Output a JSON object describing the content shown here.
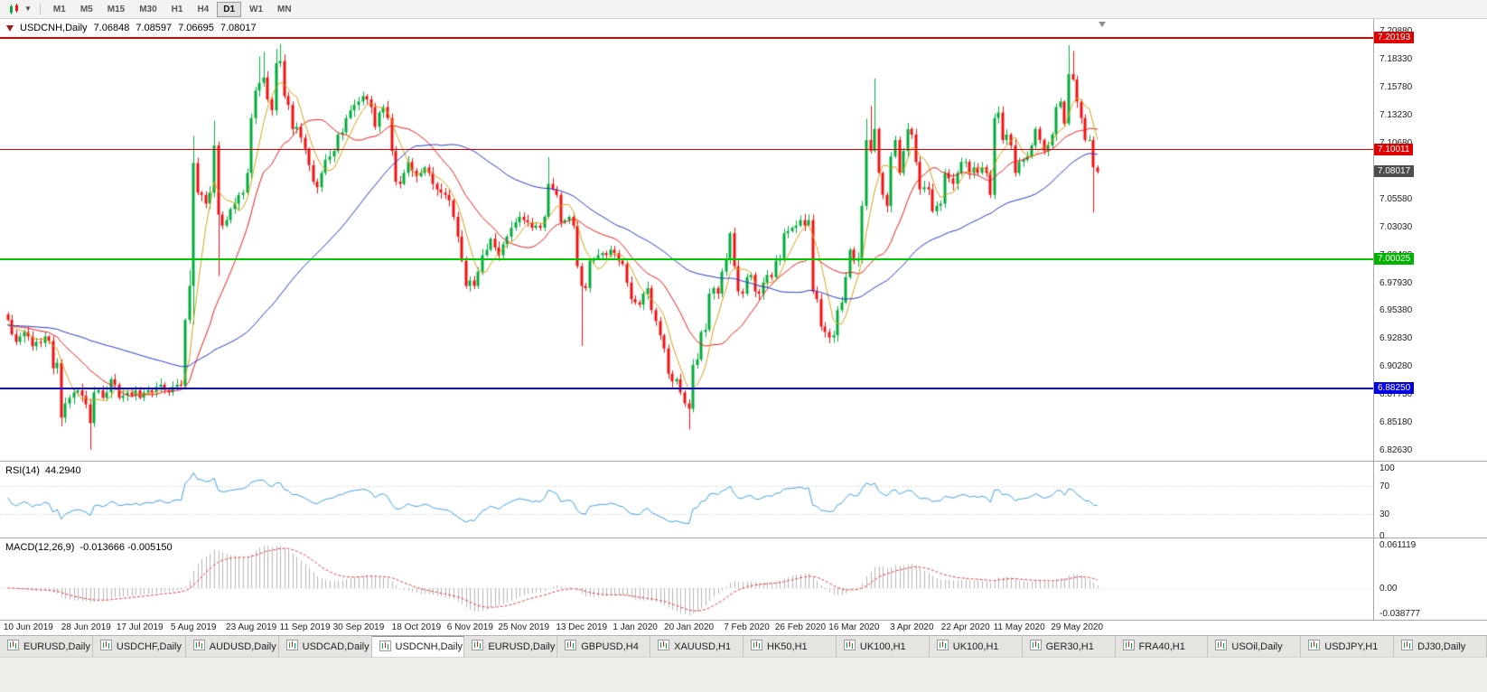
{
  "toolbar": {
    "timeframes": [
      "M1",
      "M5",
      "M15",
      "M30",
      "H1",
      "H4",
      "D1",
      "W1",
      "MN"
    ],
    "active_timeframe": "D1"
  },
  "chart": {
    "header": {
      "symbol": "USDCNH,Daily",
      "open": "7.06848",
      "high": "7.08597",
      "low": "7.06695",
      "close": "7.08017"
    },
    "rsi": {
      "name": "RSI(14)",
      "value": "44.2940"
    },
    "macd": {
      "name": "MACD(12,26,9)",
      "value": "-0.013666 -0.005150"
    },
    "price_axis": {
      "ticks": [
        "7.20880",
        "7.18330",
        "7.15780",
        "7.13230",
        "7.10680",
        "7.08130",
        "7.05580",
        "7.03030",
        "7.00480",
        "6.97930",
        "6.95380",
        "6.92830",
        "6.90280",
        "6.87730",
        "6.85180",
        "6.82630"
      ]
    },
    "rsi_axis": [
      "100",
      "70",
      "30",
      "0"
    ],
    "macd_axis": [
      "0.061119",
      "0.00",
      "-0.038777"
    ],
    "badges": [
      {
        "text": "7.20193",
        "price": 7.20193,
        "color": "#e00000"
      },
      {
        "text": "7.10011",
        "price": 7.10011,
        "color": "#e00000"
      },
      {
        "text": "7.08017",
        "price": 7.08017,
        "color": "#4d4d4d"
      },
      {
        "text": "7.00025",
        "price": 7.00025,
        "color": "#00b400"
      },
      {
        "text": "6.88250",
        "price": 6.8825,
        "color": "#0000e6"
      }
    ],
    "hlines": [
      {
        "price": 7.20193,
        "color": "#e00000",
        "width": 2
      },
      {
        "price": 7.10011,
        "color": "#e00000",
        "width": 1
      },
      {
        "price": 7.00025,
        "color": "#00c800",
        "width": 2
      },
      {
        "price": 6.8825,
        "color": "#0000e6",
        "width": 2
      }
    ],
    "x_labels": [
      {
        "text": "10 Jun 2019",
        "j": 5
      },
      {
        "text": "28 Jun 2019",
        "j": 19
      },
      {
        "text": "17 Jul 2019",
        "j": 32
      },
      {
        "text": "5 Aug 2019",
        "j": 45
      },
      {
        "text": "23 Aug 2019",
        "j": 59
      },
      {
        "text": "11 Sep 2019",
        "j": 72
      },
      {
        "text": "30 Sep 2019",
        "j": 85
      },
      {
        "text": "18 Oct 2019",
        "j": 99
      },
      {
        "text": "6 Nov 2019",
        "j": 112
      },
      {
        "text": "25 Nov 2019",
        "j": 125
      },
      {
        "text": "13 Dec 2019",
        "j": 139
      },
      {
        "text": "1 Jan 2020",
        "j": 152
      },
      {
        "text": "20 Jan 2020",
        "j": 165
      },
      {
        "text": "7 Feb 2020",
        "j": 179
      },
      {
        "text": "26 Feb 2020",
        "j": 192
      },
      {
        "text": "16 Mar 2020",
        "j": 205
      },
      {
        "text": "3 Apr 2020",
        "j": 219
      },
      {
        "text": "22 Apr 2020",
        "j": 232
      },
      {
        "text": "11 May 2020",
        "j": 245
      },
      {
        "text": "29 May 2020",
        "j": 259
      }
    ]
  },
  "chart_data": {
    "type": "candlestick",
    "symbol": "USDCNH",
    "timeframe": "Daily",
    "ohlc_display": {
      "open": "7.06848",
      "high": "7.08597",
      "low": "7.06695",
      "close": "7.08017"
    },
    "ylim": [
      6.82,
      7.216
    ],
    "closes": [
      6.945,
      6.932,
      6.925,
      6.93,
      6.934,
      6.93,
      6.921,
      6.925,
      6.924,
      6.93,
      6.926,
      6.901,
      6.906,
      6.856,
      6.869,
      6.874,
      6.879,
      6.881,
      6.876,
      6.868,
      6.851,
      6.879,
      6.881,
      6.874,
      6.879,
      6.891,
      6.886,
      6.874,
      6.876,
      6.879,
      6.876,
      6.881,
      6.874,
      6.879,
      6.881,
      6.879,
      6.884,
      6.886,
      6.881,
      6.879,
      6.884,
      6.886,
      6.885,
      6.945,
      6.976,
      7.088,
      7.061,
      7.059,
      7.051,
      7.061,
      7.104,
      7.041,
      7.031,
      7.036,
      7.046,
      7.051,
      7.059,
      7.061,
      7.079,
      7.129,
      7.154,
      7.161,
      7.166,
      7.146,
      7.136,
      7.179,
      7.181,
      7.149,
      7.141,
      7.119,
      7.121,
      7.111,
      7.101,
      7.086,
      7.071,
      7.066,
      7.079,
      7.091,
      7.094,
      7.099,
      7.114,
      7.116,
      7.129,
      7.136,
      7.141,
      7.144,
      7.149,
      7.146,
      7.139,
      7.121,
      7.134,
      7.139,
      7.129,
      7.099,
      7.071,
      7.069,
      7.079,
      7.089,
      7.081,
      7.076,
      7.079,
      7.084,
      7.079,
      7.069,
      7.064,
      7.061,
      7.059,
      7.054,
      7.039,
      7.021,
      6.999,
      6.976,
      6.981,
      6.976,
      6.989,
      7.004,
      7.009,
      7.019,
      7.011,
      7.004,
      7.014,
      7.021,
      7.029,
      7.034,
      7.039,
      7.036,
      7.034,
      7.029,
      7.031,
      7.029,
      7.039,
      7.069,
      7.064,
      7.059,
      7.034,
      7.036,
      7.039,
      7.031,
      6.994,
      6.976,
      6.974,
      6.999,
      7.001,
      7.004,
      7.006,
      7.004,
      7.009,
      7.006,
      6.999,
      6.996,
      6.979,
      6.964,
      6.961,
      6.959,
      6.969,
      6.974,
      6.954,
      6.944,
      6.931,
      6.919,
      6.896,
      6.889,
      6.891,
      6.879,
      6.869,
      6.864,
      6.904,
      6.909,
      6.934,
      6.936,
      6.969,
      6.974,
      6.969,
      6.989,
      7.001,
      7.024,
      6.994,
      6.971,
      6.969,
      6.984,
      6.986,
      6.971,
      6.969,
      6.979,
      6.986,
      6.984,
      6.999,
      7.001,
      7.024,
      7.026,
      7.029,
      7.031,
      7.036,
      7.031,
      7.036,
      6.971,
      6.964,
      6.939,
      6.934,
      6.929,
      6.931,
      6.954,
      6.961,
      6.984,
      7.009,
      6.999,
      7.001,
      7.049,
      7.109,
      7.099,
      7.119,
      7.079,
      7.059,
      7.049,
      7.094,
      7.109,
      7.079,
      7.099,
      7.119,
      7.114,
      7.089,
      7.064,
      7.066,
      7.064,
      7.044,
      7.049,
      7.051,
      7.079,
      7.074,
      7.069,
      7.079,
      7.089,
      7.089,
      7.079,
      7.084,
      7.079,
      7.084,
      7.079,
      7.059,
      7.129,
      7.134,
      7.109,
      7.114,
      7.104,
      7.079,
      7.089,
      7.091,
      7.094,
      7.104,
      7.119,
      7.109,
      7.099,
      7.104,
      7.114,
      7.139,
      7.144,
      7.124,
      7.169,
      7.164,
      7.144,
      7.129,
      7.109,
      7.109,
      7.084,
      7.08
    ],
    "wick_overrides": {
      "13": {
        "low": 6.8481
      },
      "20": {
        "low": 6.8267
      },
      "44": {
        "high": 6.9905
      },
      "45": {
        "high": 7.1126,
        "low": 6.941
      },
      "50": {
        "high": 7.1265
      },
      "51": {
        "low": 6.9852
      },
      "61": {
        "high": 7.1851
      },
      "62": {
        "high": 7.1895
      },
      "65": {
        "high": 7.1921
      },
      "66": {
        "high": 7.1965
      },
      "131": {
        "high": 7.0935
      },
      "139": {
        "low": 6.9212
      },
      "165": {
        "low": 6.8452
      },
      "208": {
        "high": 7.1283
      },
      "209": {
        "high": 7.1401
      },
      "210": {
        "high": 7.1651
      },
      "239": {
        "low": 7.0551
      },
      "257": {
        "high": 7.1954
      },
      "258": {
        "high": 7.1902
      },
      "263": {
        "low": 7.0429
      }
    },
    "indicators": {
      "ma_fast_period": 6,
      "ma_mid_period": 18,
      "ma_slow_period": 55,
      "seed_price": 6.94,
      "rsi_period": 14,
      "macd": [
        12,
        26,
        9
      ],
      "rsi_range": [
        0,
        100
      ],
      "macd_range": [
        -0.038777,
        0.061119
      ]
    },
    "colors": {
      "up": "#00ad3c",
      "down": "#f21212",
      "ma_fast": "#d4a017",
      "ma_mid": "#f01818",
      "ma_slow": "#2336c8",
      "rsi": "#3f9fdf",
      "rsi_level": "#c0c0c0",
      "macd_hist": "#b4b4b4",
      "macd_signal": "#e23c3c"
    }
  },
  "tabs": {
    "items": [
      "EURUSD,Daily",
      "USDCHF,Daily",
      "AUDUSD,Daily",
      "USDCAD,Daily",
      "USDCNH,Daily",
      "EURUSD,Daily",
      "GBPUSD,H4",
      "XAUUSD,H1",
      "HK50,H1",
      "UK100,H1",
      "UK100,H1",
      "GER30,H1",
      "FRA40,H1",
      "USOil,Daily",
      "USDJPY,H1",
      "DJ30,Daily"
    ],
    "active_index": 4
  }
}
